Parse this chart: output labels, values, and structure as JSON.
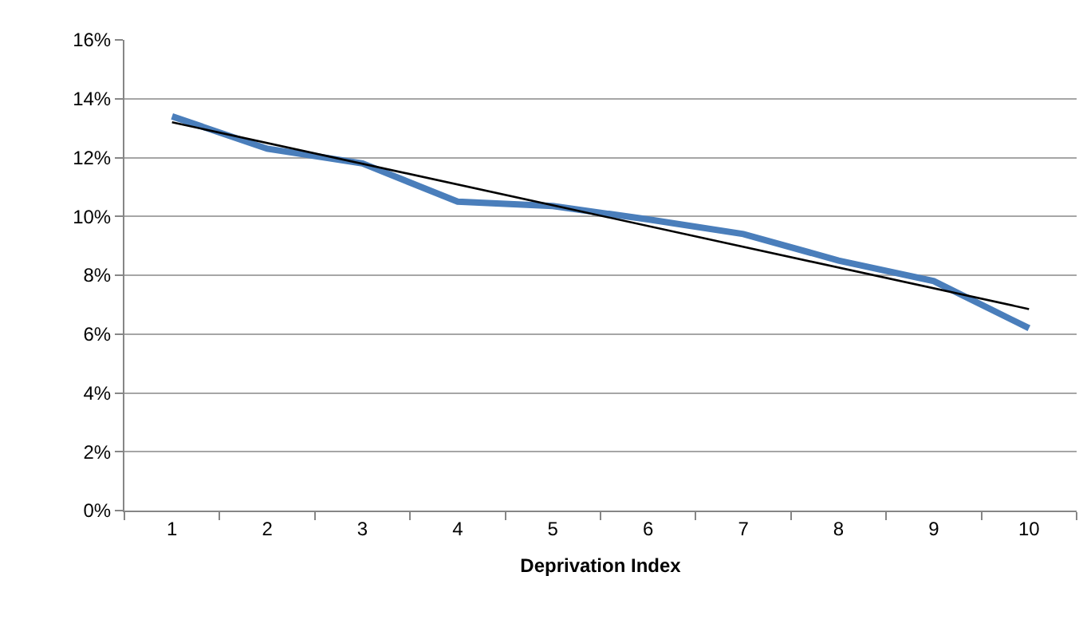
{
  "chart_data": {
    "type": "line",
    "xlabel": "Deprivation Index",
    "categories": [
      "1",
      "2",
      "3",
      "4",
      "5",
      "6",
      "7",
      "8",
      "9",
      "10"
    ],
    "series": [
      {
        "color": "#4a7ebb",
        "values": [
          13.4,
          12.3,
          11.8,
          10.5,
          10.35,
          9.9,
          9.4,
          8.5,
          7.8,
          6.2
        ]
      },
      {
        "type": "line",
        "color": "#000000",
        "x": [
          "1",
          "10"
        ],
        "values": [
          13.2,
          6.85
        ]
      }
    ],
    "ylim": [
      0,
      16
    ],
    "yticks": [
      {
        "value": 0,
        "label": "0%"
      },
      {
        "value": 2,
        "label": "2%"
      },
      {
        "value": 4,
        "label": "4%"
      },
      {
        "value": 6,
        "label": "6%"
      },
      {
        "value": 8,
        "label": "8%"
      },
      {
        "value": 10,
        "label": "10%"
      },
      {
        "value": 12,
        "label": "12%"
      },
      {
        "value": 14,
        "label": "14%"
      },
      {
        "value": 16,
        "label": "16%"
      }
    ],
    "grid": "y",
    "marker": "none",
    "line_style": "solid"
  }
}
